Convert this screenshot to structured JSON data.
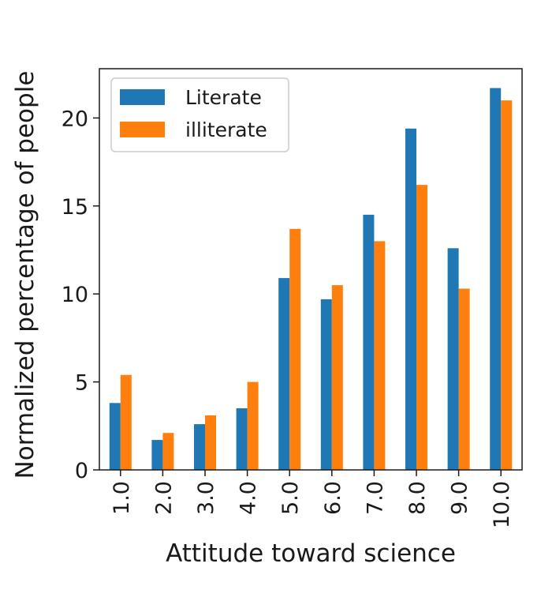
{
  "chart_data": {
    "type": "bar",
    "title": "",
    "xlabel": "Attitude toward science",
    "ylabel": "Normalized percentage of people",
    "categories": [
      "1.0",
      "2.0",
      "3.0",
      "4.0",
      "5.0",
      "6.0",
      "7.0",
      "8.0",
      "9.0",
      "10.0"
    ],
    "series": [
      {
        "name": "Literate",
        "color": "#1f77b4",
        "values": [
          3.8,
          1.7,
          2.6,
          3.5,
          10.9,
          9.7,
          14.5,
          19.4,
          12.6,
          21.7
        ]
      },
      {
        "name": "illiterate",
        "color": "#ff7f0e",
        "values": [
          5.4,
          2.1,
          3.1,
          5.0,
          13.7,
          10.5,
          13.0,
          16.2,
          10.3,
          21.0
        ]
      }
    ],
    "ylim": [
      0,
      22.8
    ],
    "yticks": [
      0,
      5,
      10,
      15,
      20
    ],
    "grid": false,
    "legend_position": "top-left"
  }
}
